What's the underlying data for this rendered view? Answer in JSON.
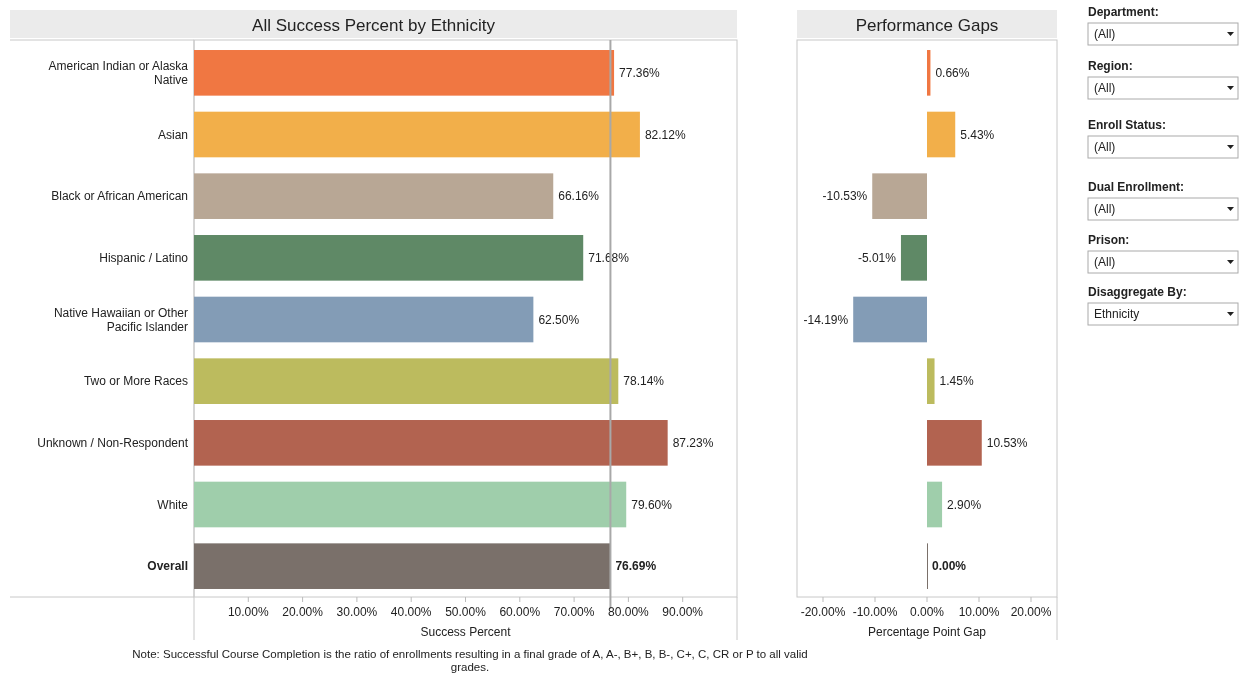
{
  "chart_data": [
    {
      "type": "bar",
      "orientation": "horizontal",
      "title": "All Success Percent by Ethnicity",
      "xlabel": "Success Percent",
      "categories": [
        "American Indian or Alaska Native",
        "Asian",
        "Black or African American",
        "Hispanic / Latino",
        "Native Hawaiian or Other Pacific Islander",
        "Two or More Races",
        "Unknown / Non-Respondent",
        "White",
        "Overall"
      ],
      "values": [
        77.36,
        82.12,
        66.16,
        71.68,
        62.5,
        78.14,
        87.23,
        79.6,
        76.69
      ],
      "value_labels": [
        "77.36%",
        "82.12%",
        "66.16%",
        "71.68%",
        "62.50%",
        "78.14%",
        "87.23%",
        "79.60%",
        "76.69%"
      ],
      "colors": [
        "#f07742",
        "#f2af4a",
        "#b8a795",
        "#5f8966",
        "#839cb6",
        "#bcbb5e",
        "#b26350",
        "#9fceab",
        "#7a706a"
      ],
      "xlim": [
        0,
        100
      ],
      "xticks": [
        {
          "value": 10,
          "label": "10.00%"
        },
        {
          "value": 20,
          "label": "20.00%"
        },
        {
          "value": 30,
          "label": "30.00%"
        },
        {
          "value": 40,
          "label": "40.00%"
        },
        {
          "value": 50,
          "label": "50.00%"
        },
        {
          "value": 60,
          "label": "60.00%"
        },
        {
          "value": 70,
          "label": "70.00%"
        },
        {
          "value": 80,
          "label": "80.00%"
        },
        {
          "value": 90,
          "label": "90.00%"
        }
      ],
      "ref_lines": [
        {
          "axis": "x",
          "value": 76.69,
          "color": "#a8a8a8"
        }
      ],
      "grid": false,
      "legend": false,
      "annotations": [
        "Note: Successful Course Completion is the ratio of enrollments resulting in a final grade of A, A-, B+, B, B-, C+, C, CR or P to all valid grades."
      ]
    },
    {
      "type": "bar",
      "orientation": "horizontal",
      "title": "Performance Gaps",
      "xlabel": "Percentage Point Gap",
      "tick_labels": "x",
      "categories": [
        null,
        null,
        null,
        null,
        null,
        null,
        null,
        null,
        null
      ],
      "values": [
        0.66,
        5.43,
        -10.53,
        -5.01,
        -14.19,
        1.45,
        10.53,
        2.9,
        0
      ],
      "value_labels": [
        "0.66%",
        "5.43%",
        "-10.53%",
        "-5.01%",
        "-14.19%",
        "1.45%",
        "10.53%",
        "2.90%",
        "0.00%"
      ],
      "colors": [
        "#f07742",
        "#f2af4a",
        "#b8a795",
        "#5f8966",
        "#839cb6",
        "#bcbb5e",
        "#b26350",
        "#9fceab",
        "#7a706a"
      ],
      "xlim": [
        -25,
        25
      ],
      "xticks": [
        {
          "value": -20,
          "label": "-20.00%"
        },
        {
          "value": -10,
          "label": "-10.00%"
        },
        {
          "value": 0,
          "label": "0.00%"
        },
        {
          "value": 10,
          "label": "10.00%"
        },
        {
          "value": 20,
          "label": "20.00%"
        }
      ],
      "grid": false,
      "legend": false
    },
    {
      "type": "other",
      "annotations": [
        "Department:",
        "(All)",
        "Region:",
        "(All)",
        "Enroll Status:",
        "(All)",
        "Dual Enrollment:",
        "(All)",
        "Prison:",
        "(All)",
        "Disaggregate By:",
        "Ethnicity"
      ]
    }
  ]
}
